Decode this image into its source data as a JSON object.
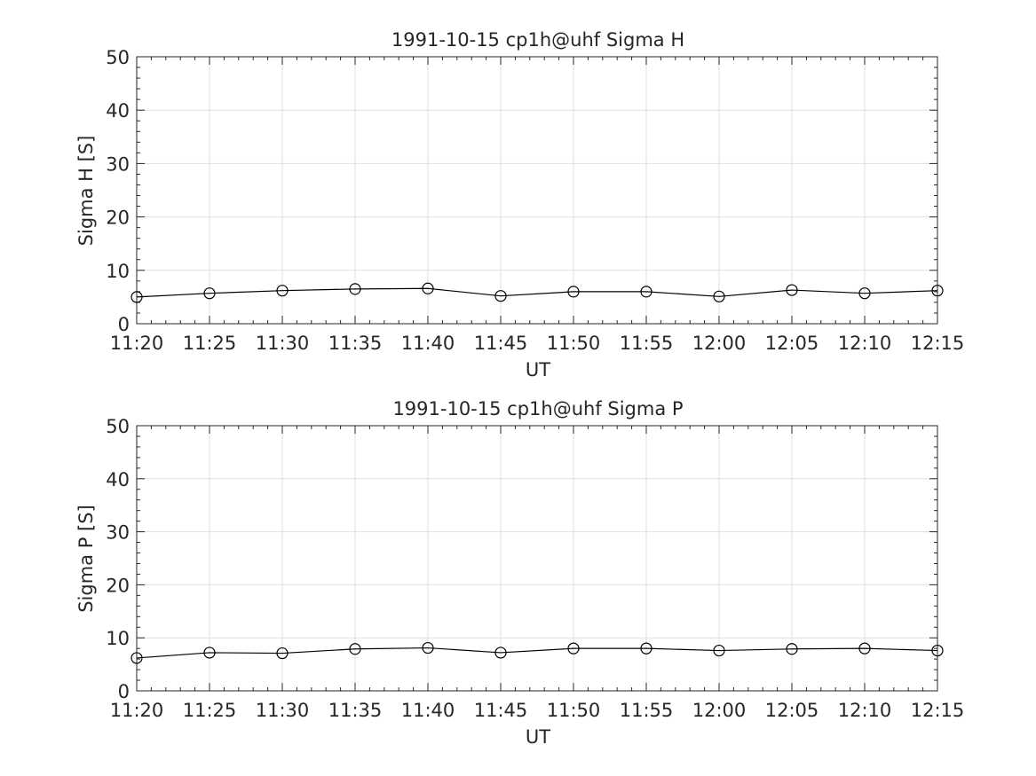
{
  "chart_data": [
    {
      "type": "line",
      "title": "1991-10-15  cp1h@uhf Sigma H",
      "xlabel": "UT",
      "ylabel": "Sigma H [S]",
      "x_ticks": [
        "11:20",
        "11:25",
        "11:30",
        "11:35",
        "11:40",
        "11:45",
        "11:50",
        "11:55",
        "12:00",
        "12:05",
        "12:10",
        "12:15"
      ],
      "y_ticks": [
        "0",
        "10",
        "20",
        "30",
        "40",
        "50"
      ],
      "xlim": [
        "11:20",
        "12:15"
      ],
      "ylim": [
        0,
        50
      ],
      "grid": true,
      "marker": "circle",
      "color": "#000000",
      "x": [
        "11:20",
        "11:25",
        "11:30",
        "11:35",
        "11:40",
        "11:45",
        "11:50",
        "11:55",
        "12:00",
        "12:05",
        "12:10",
        "12:15"
      ],
      "values": [
        5.0,
        5.7,
        6.2,
        6.5,
        6.6,
        5.2,
        6.0,
        6.0,
        5.1,
        6.3,
        5.7,
        6.2
      ]
    },
    {
      "type": "line",
      "title": "1991-10-15  cp1h@uhf Sigma P",
      "xlabel": "UT",
      "ylabel": "Sigma P [S]",
      "x_ticks": [
        "11:20",
        "11:25",
        "11:30",
        "11:35",
        "11:40",
        "11:45",
        "11:50",
        "11:55",
        "12:00",
        "12:05",
        "12:10",
        "12:15"
      ],
      "y_ticks": [
        "0",
        "10",
        "20",
        "30",
        "40",
        "50"
      ],
      "xlim": [
        "11:20",
        "12:15"
      ],
      "ylim": [
        0,
        50
      ],
      "grid": true,
      "marker": "circle",
      "color": "#000000",
      "x": [
        "11:20",
        "11:25",
        "11:30",
        "11:35",
        "11:40",
        "11:45",
        "11:50",
        "11:55",
        "12:00",
        "12:05",
        "12:10",
        "12:15"
      ],
      "values": [
        6.2,
        7.2,
        7.1,
        7.9,
        8.1,
        7.2,
        8.0,
        8.0,
        7.6,
        7.9,
        8.0,
        7.6
      ]
    }
  ]
}
